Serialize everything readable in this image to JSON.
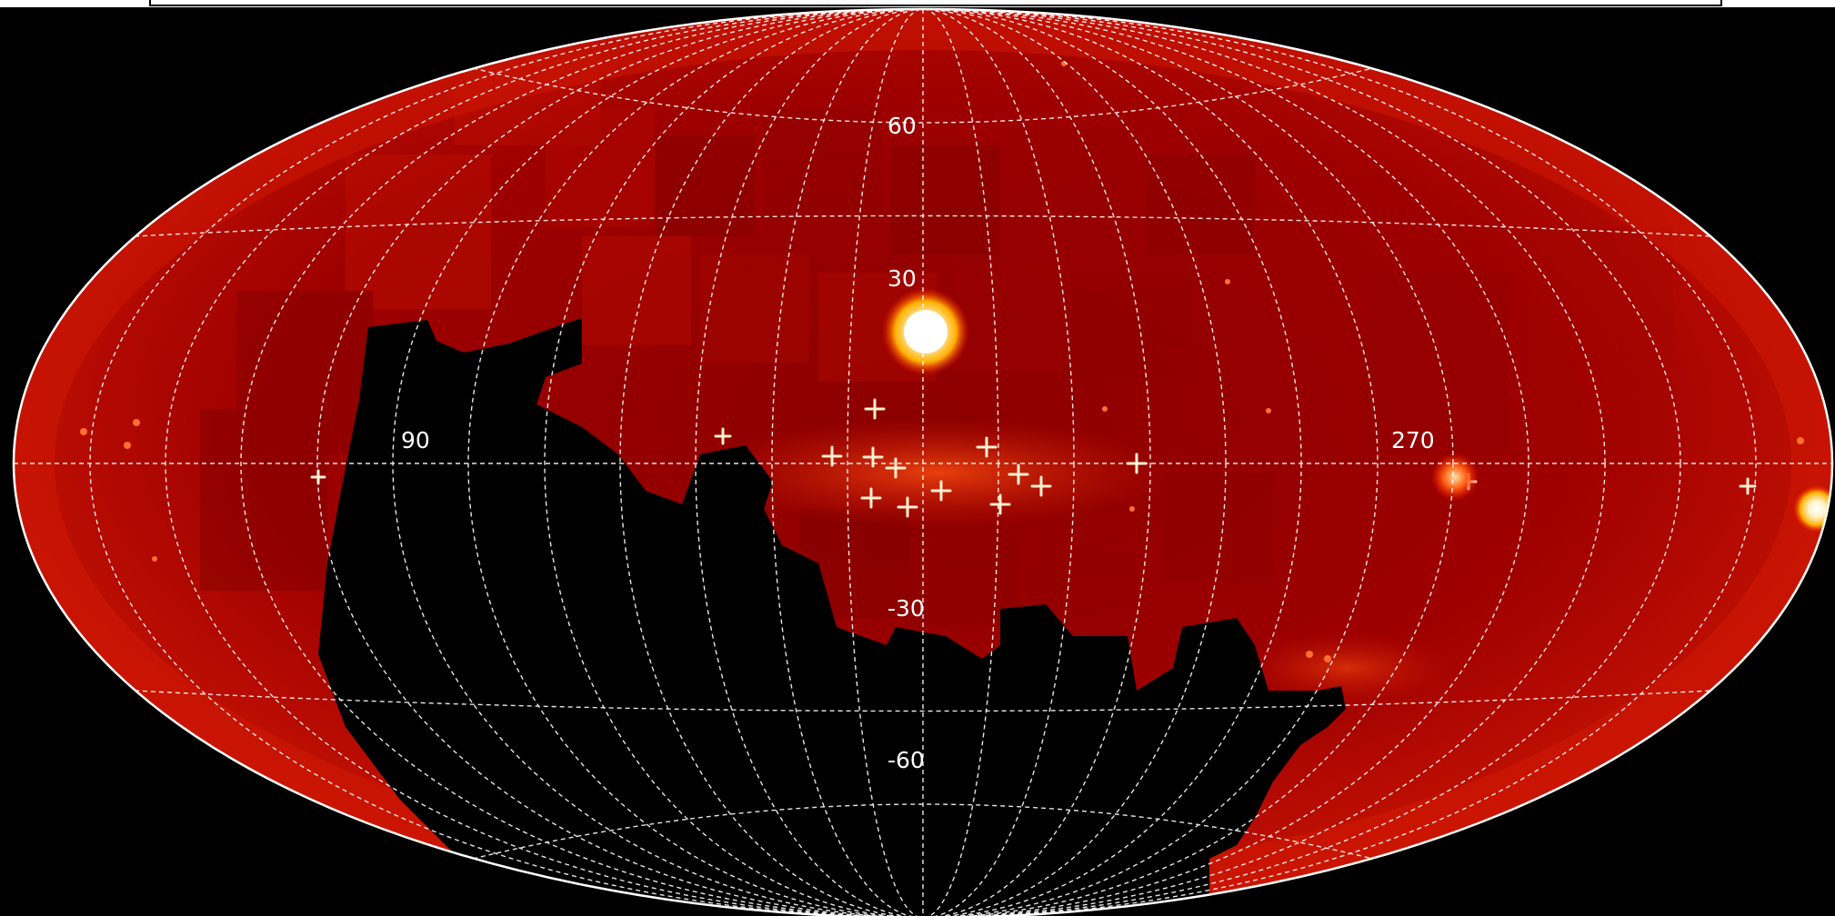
{
  "sky_map": {
    "projection": "Aitoff",
    "colormap": "black-red-yellow-white (hot)",
    "colors": {
      "background": "#000000",
      "map_dark": "#6e0000",
      "map_mid": "#a40000",
      "map_bright": "#d41a04",
      "source_core": "#fff3c8",
      "grid": "#ffffff",
      "outline": "#ffffff"
    },
    "latitude_labels": [
      "60",
      "30",
      "-30",
      "-60"
    ],
    "longitude_labels": [
      "90",
      "270"
    ],
    "grid": true,
    "grid_style": "dashed white graticule",
    "features": [
      "bright extended source north of centre",
      "chain of point sources along the equator",
      "unobserved black region in lower left",
      "bright extended sources near right edge"
    ]
  }
}
